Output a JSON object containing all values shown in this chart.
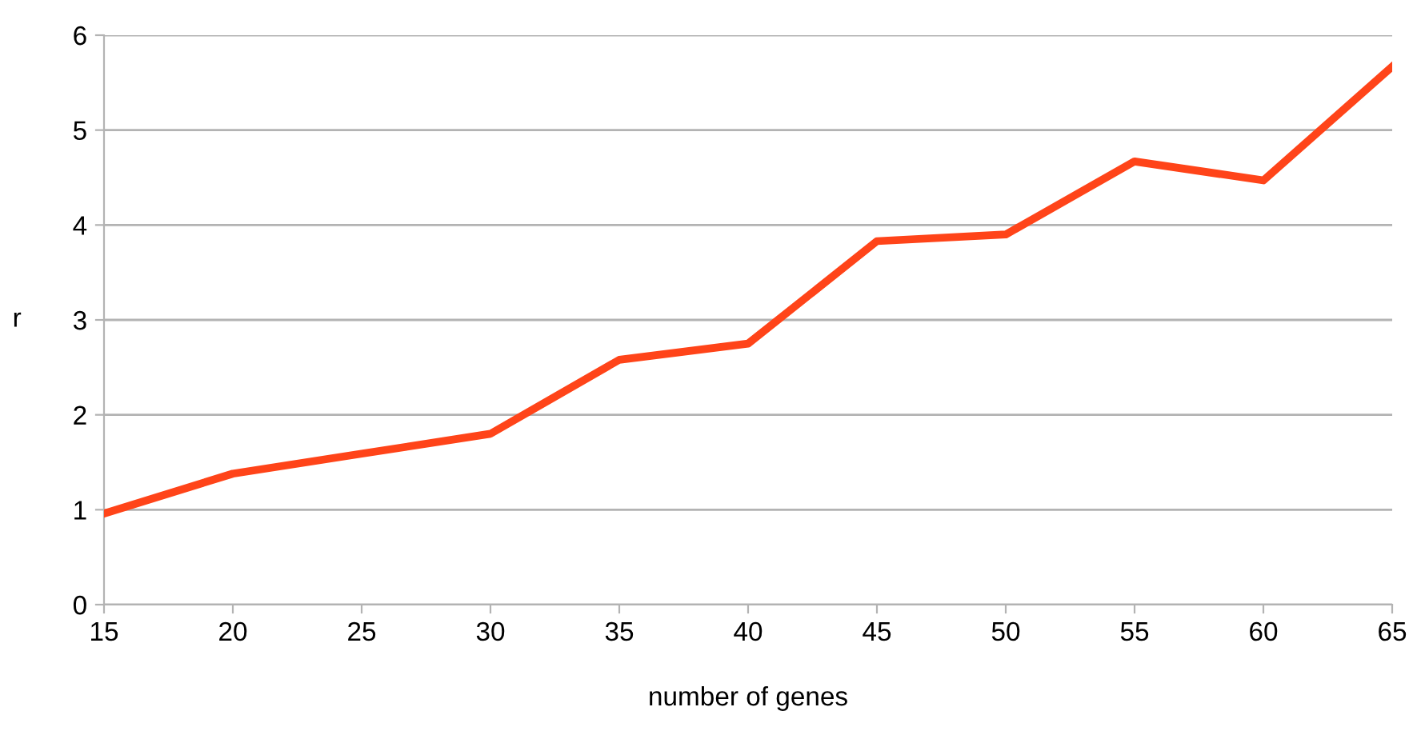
{
  "chart_data": {
    "type": "line",
    "xlabel": "number of genes",
    "ylabel": "r",
    "x": [
      15,
      20,
      25,
      30,
      35,
      40,
      45,
      50,
      55,
      60,
      65
    ],
    "series": [
      {
        "color": "#ff4419",
        "values": [
          0.96,
          1.38,
          1.59,
          1.8,
          2.58,
          2.75,
          3.83,
          3.9,
          4.67,
          4.47,
          5.67
        ]
      }
    ],
    "xlim": [
      15,
      65
    ],
    "xticks": [
      15,
      20,
      25,
      30,
      35,
      40,
      45,
      50,
      55,
      60,
      65
    ],
    "ylim": [
      0,
      6
    ],
    "yticks": [
      0,
      1,
      2,
      3,
      4,
      5,
      6
    ],
    "grid": "y",
    "line_style": "solid",
    "legend": false
  }
}
